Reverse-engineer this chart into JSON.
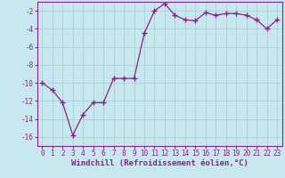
{
  "x": [
    0,
    1,
    2,
    3,
    4,
    5,
    6,
    7,
    8,
    9,
    10,
    11,
    12,
    13,
    14,
    15,
    16,
    17,
    18,
    19,
    20,
    21,
    22,
    23
  ],
  "y": [
    -10,
    -10.8,
    -12.2,
    -15.8,
    -13.5,
    -12.2,
    -12.2,
    -9.5,
    -9.5,
    -9.5,
    -4.5,
    -2.0,
    -1.2,
    -2.5,
    -3.0,
    -3.1,
    -2.2,
    -2.5,
    -2.3,
    -2.3,
    -2.5,
    -3.0,
    -4.0,
    -3.0
  ],
  "line_color": "#882288",
  "marker": "+",
  "marker_size": 4,
  "linewidth": 0.9,
  "xlabel": "Windchill (Refroidissement éolien,°C)",
  "xlabel_fontsize": 6.5,
  "background_color": "#c8e8f0",
  "grid_color": "#aacccc",
  "xlim": [
    -0.5,
    23.5
  ],
  "ylim": [
    -17,
    -1
  ],
  "yticks": [
    -16,
    -14,
    -12,
    -10,
    -8,
    -6,
    -4,
    -2
  ],
  "xticks": [
    0,
    1,
    2,
    3,
    4,
    5,
    6,
    7,
    8,
    9,
    10,
    11,
    12,
    13,
    14,
    15,
    16,
    17,
    18,
    19,
    20,
    21,
    22,
    23
  ],
  "tick_fontsize": 5.5,
  "tick_color": "#882288",
  "xlabel_color": "#882288",
  "spine_color": "#882288"
}
